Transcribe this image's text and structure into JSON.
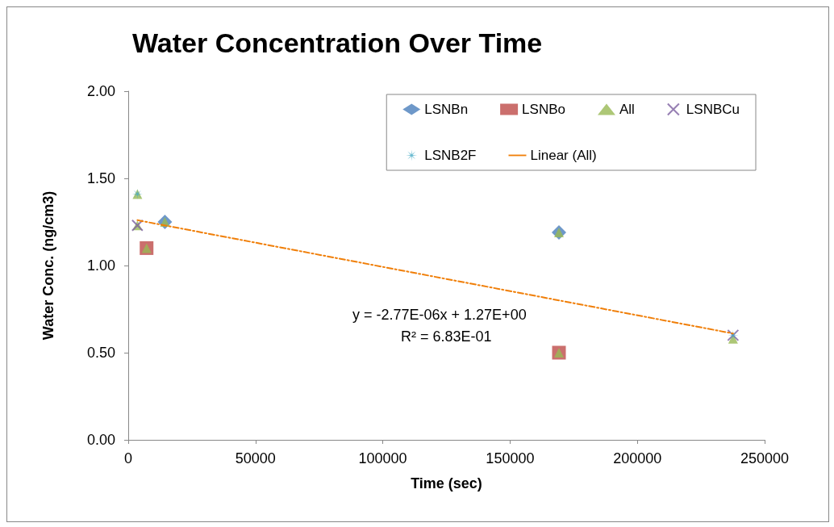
{
  "chart_data": {
    "type": "scatter",
    "title": "Water Concentration Over Time",
    "xlabel": "Time (sec)",
    "ylabel": "Water Conc. (ng/cm3)",
    "xlim": [
      0,
      250000
    ],
    "xticks": [
      0,
      50000,
      100000,
      150000,
      200000,
      250000
    ],
    "ylim": [
      0,
      2
    ],
    "yticks": [
      {
        "value": 0,
        "label": "0.00"
      },
      {
        "value": 0.5,
        "label": "0.50"
      },
      {
        "value": 1,
        "label": "1.00"
      },
      {
        "value": 1.5,
        "label": "1.50"
      },
      {
        "value": 2,
        "label": "2.00"
      }
    ],
    "grid": false,
    "legend": "top right",
    "series": [
      {
        "name": "LSNBn",
        "color": "#4a7ebb",
        "marker": "diamond",
        "x": [
          14400,
          169200
        ],
        "values": [
          1.25,
          1.19
        ]
      },
      {
        "name": "LSNBo",
        "color": "#be4b48",
        "marker": "square",
        "x": [
          7200,
          169200
        ],
        "values": [
          1.1,
          0.5
        ]
      },
      {
        "name": "All",
        "color": "#98b954",
        "marker": "triangle",
        "x": [
          3600,
          3600,
          7200,
          14400,
          169200,
          169200,
          237600
        ],
        "values": [
          1.41,
          1.23,
          1.1,
          1.25,
          1.19,
          0.5,
          0.58
        ]
      },
      {
        "name": "LSNBCu",
        "color": "#7d60a0",
        "marker": "cross",
        "x": [
          3600,
          237600
        ],
        "values": [
          1.23,
          0.6
        ]
      },
      {
        "name": "LSNB2F",
        "color": "#46aac5",
        "marker": "star",
        "x": [
          3600,
          237600
        ],
        "values": [
          1.41,
          0.6
        ]
      },
      {
        "name": "Linear (All)",
        "type": "line",
        "color": "#f07f09",
        "marker": "none",
        "line_style": "dashed",
        "x": [
          3600,
          237600
        ],
        "values": [
          1.26,
          0.61
        ]
      }
    ],
    "annotations": [
      "y = -2.77E-06x + 1.27E+00",
      "R² = 6.83E-01"
    ]
  }
}
